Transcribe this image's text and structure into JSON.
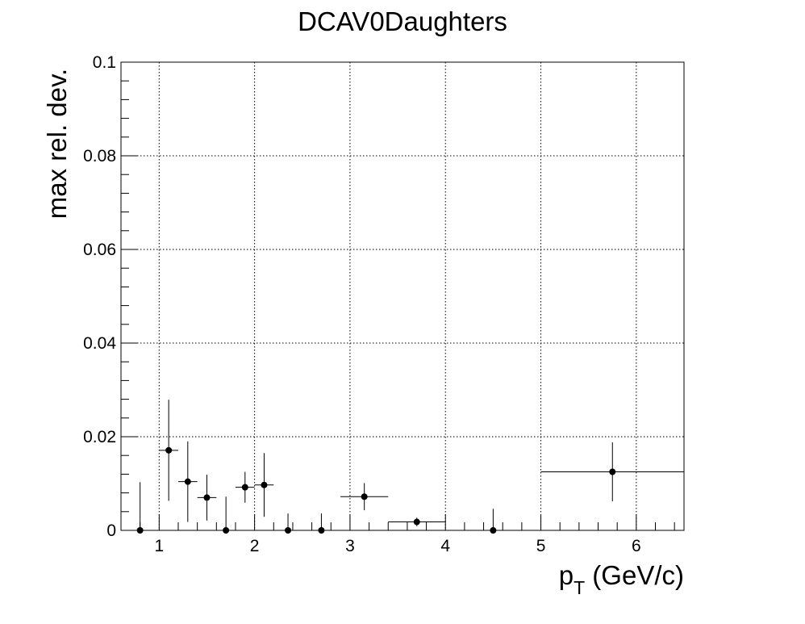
{
  "chart_data": {
    "type": "scatter",
    "title": "DCAV0Daughters",
    "xlabel_main": "p",
    "xlabel_sub": "T",
    "xlabel_rest": " (GeV/c)",
    "ylabel": "max rel. dev.",
    "xlim": [
      0.6,
      6.5
    ],
    "ylim": [
      0,
      0.1
    ],
    "x_ticks": [
      1,
      2,
      3,
      4,
      5,
      6
    ],
    "x_tick_labels": [
      "1",
      "2",
      "3",
      "4",
      "5",
      "6"
    ],
    "y_ticks": [
      0,
      0.02,
      0.04,
      0.06,
      0.08,
      0.1
    ],
    "y_tick_labels": [
      "0",
      "0.02",
      "0.04",
      "0.06",
      "0.08",
      "0.1"
    ],
    "grid": true,
    "points": [
      {
        "x": 0.8,
        "xerr": 0.2,
        "y": 0.0,
        "yerr_low": 0.0,
        "yerr_high": 0.0103
      },
      {
        "x": 1.1,
        "xerr": 0.1,
        "y": 0.0171,
        "yerr_low": 0.0108,
        "yerr_high": 0.0108
      },
      {
        "x": 1.3,
        "xerr": 0.1,
        "y": 0.0104,
        "yerr_low": 0.0086,
        "yerr_high": 0.0086
      },
      {
        "x": 1.5,
        "xerr": 0.1,
        "y": 0.007,
        "yerr_low": 0.0049,
        "yerr_high": 0.0049
      },
      {
        "x": 1.7,
        "xerr": 0.1,
        "y": 0.0,
        "yerr_low": 0.0,
        "yerr_high": 0.0072
      },
      {
        "x": 1.9,
        "xerr": 0.1,
        "y": 0.0092,
        "yerr_low": 0.0033,
        "yerr_high": 0.0033
      },
      {
        "x": 2.1,
        "xerr": 0.1,
        "y": 0.0097,
        "yerr_low": 0.0068,
        "yerr_high": 0.0068
      },
      {
        "x": 2.35,
        "xerr": 0.15,
        "y": 0.0,
        "yerr_low": 0.0,
        "yerr_high": 0.0036
      },
      {
        "x": 2.7,
        "xerr": 0.2,
        "y": 0.0,
        "yerr_low": 0.0,
        "yerr_high": 0.0036
      },
      {
        "x": 3.15,
        "xerr": 0.25,
        "y": 0.0072,
        "yerr_low": 0.0029,
        "yerr_high": 0.0029
      },
      {
        "x": 3.7,
        "xerr": 0.3,
        "y": 0.0018,
        "yerr_low": 0.0009,
        "yerr_high": 0.0009
      },
      {
        "x": 4.5,
        "xerr": 0.5,
        "y": 0.0,
        "yerr_low": 0.0,
        "yerr_high": 0.0046
      },
      {
        "x": 5.75,
        "xerr": 0.75,
        "y": 0.0125,
        "yerr_low": 0.0063,
        "yerr_high": 0.0063
      }
    ]
  }
}
